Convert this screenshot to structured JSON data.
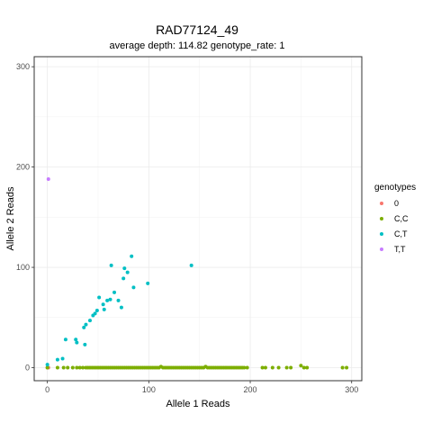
{
  "chart_data": {
    "type": "scatter",
    "title": "RAD77124_49",
    "subtitle": "average depth:  114.82  genotype_rate:  1",
    "xlabel": "Allele 1 Reads",
    "ylabel": "Allele 2 Reads",
    "xlim": [
      -13,
      310
    ],
    "ylim": [
      -13,
      310
    ],
    "x_ticks": [
      0,
      100,
      200,
      300
    ],
    "y_ticks": [
      0,
      100,
      200,
      300
    ],
    "grid": true,
    "legend_position": "right",
    "legend_title": "genotypes",
    "series": [
      {
        "name": "0",
        "color": "#f8766d",
        "points": [
          [
            0,
            0
          ],
          [
            1,
            0
          ]
        ]
      },
      {
        "name": "C,C",
        "color": "#7cae00",
        "points": [
          [
            0,
            0
          ],
          [
            10,
            0
          ],
          [
            16,
            0
          ],
          [
            20,
            0
          ],
          [
            25,
            0
          ],
          [
            29,
            0
          ],
          [
            32,
            0
          ],
          [
            35,
            0
          ],
          [
            38,
            0
          ],
          [
            40,
            0
          ],
          [
            42,
            0
          ],
          [
            44,
            0
          ],
          [
            46,
            0
          ],
          [
            48,
            0
          ],
          [
            50,
            0
          ],
          [
            52,
            0
          ],
          [
            54,
            0
          ],
          [
            56,
            0
          ],
          [
            58,
            0
          ],
          [
            60,
            0
          ],
          [
            62,
            0
          ],
          [
            64,
            0
          ],
          [
            66,
            0
          ],
          [
            68,
            0
          ],
          [
            70,
            0
          ],
          [
            72,
            0
          ],
          [
            74,
            0
          ],
          [
            76,
            0
          ],
          [
            78,
            0
          ],
          [
            80,
            0
          ],
          [
            82,
            0
          ],
          [
            84,
            0
          ],
          [
            86,
            0
          ],
          [
            88,
            0
          ],
          [
            90,
            0
          ],
          [
            92,
            0
          ],
          [
            94,
            0
          ],
          [
            96,
            0
          ],
          [
            98,
            0
          ],
          [
            100,
            0
          ],
          [
            102,
            0
          ],
          [
            104,
            0
          ],
          [
            106,
            0
          ],
          [
            108,
            0
          ],
          [
            110,
            0
          ],
          [
            112,
            1
          ],
          [
            114,
            0
          ],
          [
            116,
            0
          ],
          [
            118,
            0
          ],
          [
            120,
            0
          ],
          [
            122,
            0
          ],
          [
            124,
            0
          ],
          [
            126,
            0
          ],
          [
            128,
            0
          ],
          [
            130,
            0
          ],
          [
            132,
            0
          ],
          [
            134,
            0
          ],
          [
            136,
            0
          ],
          [
            138,
            0
          ],
          [
            140,
            0
          ],
          [
            142,
            0
          ],
          [
            144,
            0
          ],
          [
            146,
            0
          ],
          [
            148,
            0
          ],
          [
            150,
            0
          ],
          [
            152,
            0
          ],
          [
            154,
            0
          ],
          [
            156,
            1
          ],
          [
            158,
            0
          ],
          [
            160,
            0
          ],
          [
            162,
            0
          ],
          [
            164,
            0
          ],
          [
            166,
            0
          ],
          [
            168,
            0
          ],
          [
            170,
            0
          ],
          [
            172,
            0
          ],
          [
            174,
            0
          ],
          [
            176,
            0
          ],
          [
            178,
            0
          ],
          [
            180,
            0
          ],
          [
            182,
            0
          ],
          [
            184,
            0
          ],
          [
            186,
            0
          ],
          [
            188,
            0
          ],
          [
            190,
            0
          ],
          [
            192,
            0
          ],
          [
            194,
            0
          ],
          [
            197,
            0
          ],
          [
            212,
            0
          ],
          [
            215,
            0
          ],
          [
            222,
            0
          ],
          [
            228,
            0
          ],
          [
            236,
            0
          ],
          [
            240,
            0
          ],
          [
            250,
            2
          ],
          [
            253,
            0
          ],
          [
            256,
            0
          ],
          [
            291,
            0
          ],
          [
            295,
            0
          ]
        ]
      },
      {
        "name": "C,T",
        "color": "#00bfc4",
        "points": [
          [
            0,
            3
          ],
          [
            10,
            8
          ],
          [
            15,
            9
          ],
          [
            18,
            28
          ],
          [
            28,
            28
          ],
          [
            29,
            25
          ],
          [
            37,
            23
          ],
          [
            36,
            40
          ],
          [
            38,
            43
          ],
          [
            42,
            47
          ],
          [
            45,
            52
          ],
          [
            47,
            54
          ],
          [
            49,
            57
          ],
          [
            51,
            70
          ],
          [
            55,
            63
          ],
          [
            56,
            58
          ],
          [
            59,
            67
          ],
          [
            62,
            68
          ],
          [
            63,
            102
          ],
          [
            66,
            75
          ],
          [
            70,
            67
          ],
          [
            73,
            60
          ],
          [
            75,
            89
          ],
          [
            76,
            99
          ],
          [
            79,
            95
          ],
          [
            83,
            111
          ],
          [
            85,
            80
          ],
          [
            99,
            84
          ],
          [
            142,
            102
          ]
        ]
      },
      {
        "name": "T,T",
        "color": "#c77cff",
        "points": [
          [
            1,
            188
          ]
        ]
      }
    ]
  }
}
